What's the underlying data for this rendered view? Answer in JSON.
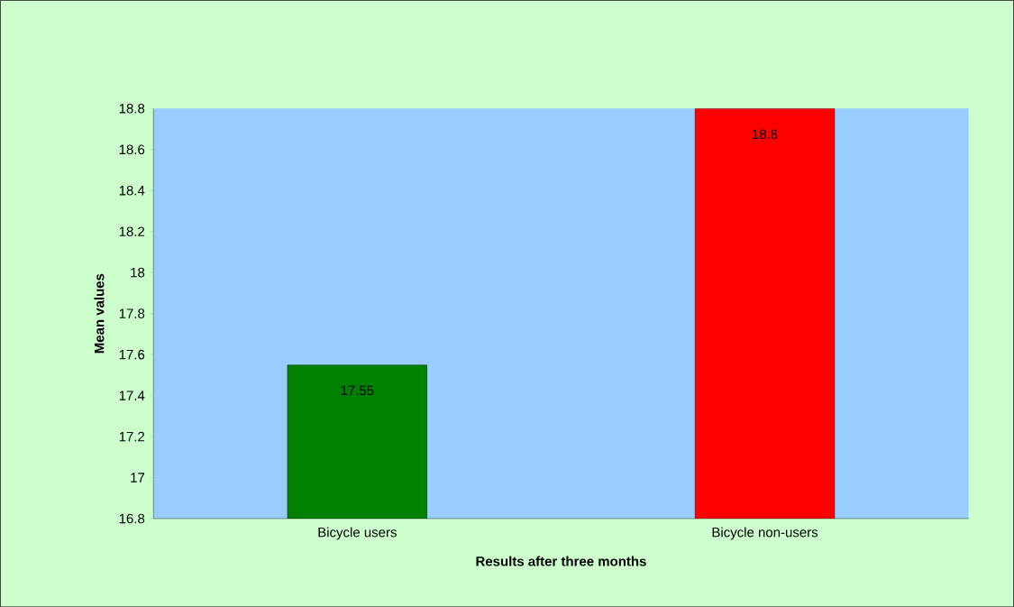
{
  "chart_data": {
    "type": "bar",
    "xlabel": "Results after three months",
    "ylabel": "Mean values",
    "categories": [
      "Bicycle users",
      "Bicycle non-users"
    ],
    "values": [
      17.55,
      18.8
    ],
    "colors": [
      "#008000",
      "#ff0000"
    ],
    "ylim": [
      16.8,
      18.8
    ],
    "yticks": [
      16.8,
      17,
      17.2,
      17.4,
      17.6,
      17.8,
      18,
      18.2,
      18.4,
      18.6,
      18.8
    ],
    "data_labels": true,
    "grid": false
  }
}
